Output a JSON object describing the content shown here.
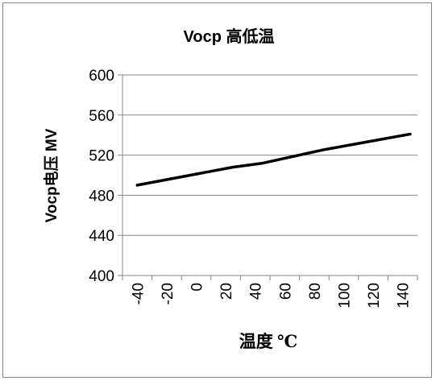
{
  "chart_data": {
    "type": "line",
    "title": "Vocp 高低温",
    "xlabel": "温度 ℃",
    "ylabel": "Vocp电压 MV",
    "x_categories": [
      "-40",
      "-20",
      "0",
      "20",
      "40",
      "60",
      "80",
      "100",
      "120",
      "140"
    ],
    "ylim": [
      400,
      600
    ],
    "y_ticks": [
      "400",
      "440",
      "480",
      "520",
      "560",
      "600"
    ],
    "grid": true,
    "legend": "none",
    "series": [
      {
        "color": "#000000",
        "points": [
          {
            "x": -40,
            "y": 490
          },
          {
            "x": 25,
            "y": 508
          },
          {
            "x": 45,
            "y": 512
          },
          {
            "x": 85,
            "y": 525
          },
          {
            "x": 145,
            "y": 541
          }
        ]
      }
    ],
    "colors": {
      "axis": "#868686",
      "grid": "#868686",
      "line": "#000000"
    }
  }
}
